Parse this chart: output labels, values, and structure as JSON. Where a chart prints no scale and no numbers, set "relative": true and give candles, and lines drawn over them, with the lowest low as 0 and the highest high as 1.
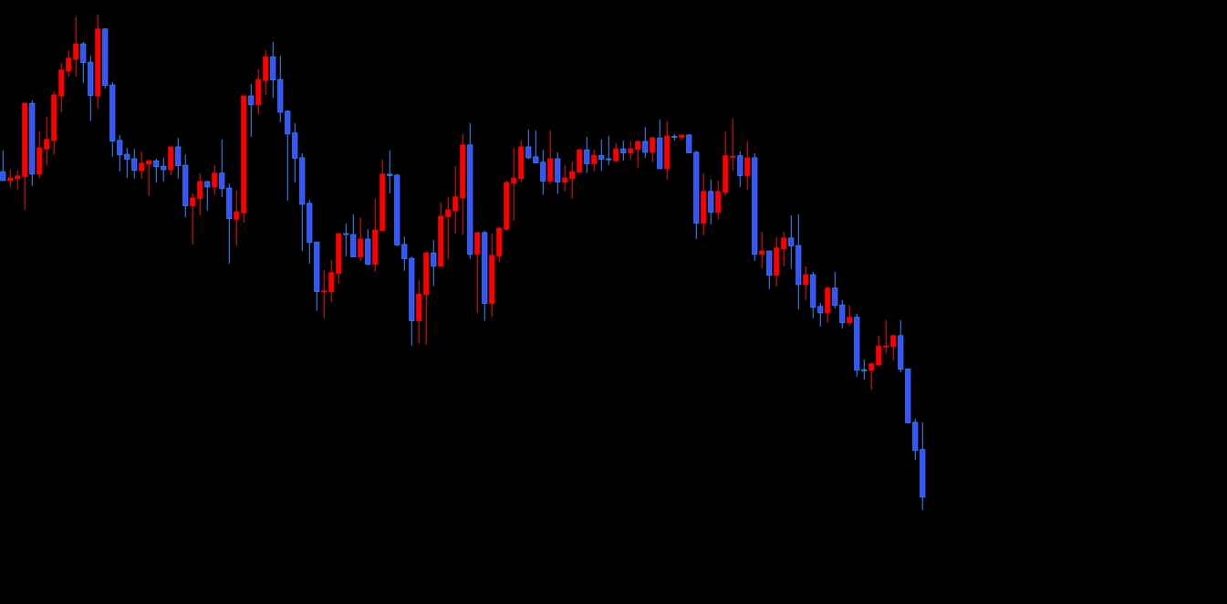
{
  "chart_data": {
    "type": "candlestick",
    "relative": true,
    "categories": [
      null,
      null,
      null,
      null,
      null,
      null,
      null,
      null,
      null,
      null,
      null,
      null,
      null,
      null,
      null,
      null,
      null,
      null,
      null,
      null,
      null,
      null,
      null,
      null,
      null,
      null,
      null,
      null,
      null,
      null,
      null,
      null,
      null,
      null,
      null,
      null,
      null,
      null,
      null,
      null,
      null,
      null,
      null,
      null,
      null,
      null,
      null,
      null,
      null,
      null,
      null,
      null,
      null,
      null,
      null,
      null,
      null,
      null,
      null,
      null,
      null,
      null,
      null,
      null,
      null,
      null,
      null,
      null,
      null,
      null,
      null,
      null,
      null,
      null,
      null,
      null,
      null,
      null,
      null,
      null,
      null,
      null,
      null,
      null,
      null,
      null,
      null,
      null,
      null,
      null,
      null,
      null,
      null,
      null,
      null,
      null,
      null,
      null,
      null,
      null,
      null,
      null,
      null,
      null,
      null,
      null,
      null,
      null,
      null,
      null,
      null,
      null,
      null,
      null,
      null,
      null,
      null,
      null,
      null,
      null,
      null,
      null,
      null,
      null,
      null,
      null,
      null
    ],
    "ohlc": [
      [
        0.683,
        0.726,
        0.665,
        0.665
      ],
      [
        0.665,
        0.687,
        0.652,
        0.67
      ],
      [
        0.669,
        0.685,
        0.647,
        0.674
      ],
      [
        0.673,
        0.821,
        0.606,
        0.821
      ],
      [
        0.821,
        0.827,
        0.654,
        0.678
      ],
      [
        0.678,
        0.764,
        0.67,
        0.731
      ],
      [
        0.729,
        0.794,
        0.696,
        0.748
      ],
      [
        0.746,
        0.845,
        0.718,
        0.838
      ],
      [
        0.836,
        0.902,
        0.803,
        0.888
      ],
      [
        0.886,
        0.928,
        0.875,
        0.912
      ],
      [
        0.91,
        0.996,
        0.875,
        0.941
      ],
      [
        0.941,
        0.945,
        0.862,
        0.903
      ],
      [
        0.904,
        0.917,
        0.785,
        0.837
      ],
      [
        0.836,
        1,
        0.81,
        0.971
      ],
      [
        0.971,
        0.971,
        0.851,
        0.857
      ],
      [
        0.858,
        0.864,
        0.713,
        0.745
      ],
      [
        0.746,
        0.757,
        0.683,
        0.717
      ],
      [
        0.718,
        0.731,
        0.67,
        0.708
      ],
      [
        0.709,
        0.729,
        0.669,
        0.686
      ],
      [
        0.685,
        0.724,
        0.669,
        0.7
      ],
      [
        0.698,
        0.707,
        0.634,
        0.705
      ],
      [
        0.705,
        0.709,
        0.661,
        0.693
      ],
      [
        0.694,
        0.711,
        0.663,
        0.687
      ],
      [
        0.687,
        0.733,
        0.676,
        0.733
      ],
      [
        0.733,
        0.751,
        0.669,
        0.695
      ],
      [
        0.696,
        0.718,
        0.591,
        0.614
      ],
      [
        0.614,
        0.639,
        0.536,
        0.63
      ],
      [
        0.629,
        0.68,
        0.595,
        0.663
      ],
      [
        0.663,
        0.665,
        0.604,
        0.652
      ],
      [
        0.652,
        0.696,
        0.637,
        0.68
      ],
      [
        0.68,
        0.748,
        0.632,
        0.649
      ],
      [
        0.65,
        0.659,
        0.497,
        0.588
      ],
      [
        0.587,
        0.645,
        0.534,
        0.602
      ],
      [
        0.6,
        0.836,
        0.58,
        0.836
      ],
      [
        0.836,
        0.86,
        0.753,
        0.818
      ],
      [
        0.818,
        0.89,
        0.799,
        0.869
      ],
      [
        0.867,
        0.928,
        0.838,
        0.915
      ],
      [
        0.915,
        0.945,
        0.832,
        0.868
      ],
      [
        0.869,
        0.917,
        0.783,
        0.803
      ],
      [
        0.805,
        0.807,
        0.624,
        0.759
      ],
      [
        0.761,
        0.781,
        0.661,
        0.71
      ],
      [
        0.711,
        0.72,
        0.523,
        0.617
      ],
      [
        0.619,
        0.626,
        0.497,
        0.54
      ],
      [
        0.541,
        0.541,
        0.402,
        0.441
      ],
      [
        0.442,
        0.484,
        0.387,
        0.442
      ],
      [
        0.441,
        0.505,
        0.42,
        0.479
      ],
      [
        0.478,
        0.558,
        0.457,
        0.558
      ],
      [
        0.558,
        0.578,
        0.512,
        0.556
      ],
      [
        0.556,
        0.597,
        0.511,
        0.511
      ],
      [
        0.511,
        0.591,
        0.503,
        0.547
      ],
      [
        0.547,
        0.567,
        0.494,
        0.496
      ],
      [
        0.496,
        0.628,
        0.481,
        0.565
      ],
      [
        0.564,
        0.707,
        0.564,
        0.678
      ],
      [
        0.678,
        0.726,
        0.639,
        0.675
      ],
      [
        0.676,
        0.678,
        0.533,
        0.535
      ],
      [
        0.536,
        0.552,
        0.483,
        0.507
      ],
      [
        0.508,
        0.512,
        0.332,
        0.382
      ],
      [
        0.382,
        0.464,
        0.336,
        0.436
      ],
      [
        0.435,
        0.521,
        0.334,
        0.519
      ],
      [
        0.519,
        0.545,
        0.452,
        0.492
      ],
      [
        0.492,
        0.621,
        0.492,
        0.593
      ],
      [
        0.592,
        0.632,
        0.507,
        0.606
      ],
      [
        0.604,
        0.694,
        0.558,
        0.632
      ],
      [
        0.63,
        0.759,
        0.556,
        0.737
      ],
      [
        0.737,
        0.781,
        0.507,
        0.516
      ],
      [
        0.516,
        0.56,
        0.398,
        0.56
      ],
      [
        0.56,
        0.564,
        0.382,
        0.417
      ],
      [
        0.417,
        0.558,
        0.39,
        0.514
      ],
      [
        0.513,
        0.571,
        0.501,
        0.569
      ],
      [
        0.567,
        0.665,
        0.563,
        0.661
      ],
      [
        0.66,
        0.731,
        0.584,
        0.67
      ],
      [
        0.669,
        0.746,
        0.662,
        0.733
      ],
      [
        0.733,
        0.768,
        0.708,
        0.711
      ],
      [
        0.713,
        0.766,
        0.701,
        0.701
      ],
      [
        0.702,
        0.727,
        0.636,
        0.664
      ],
      [
        0.664,
        0.766,
        0.658,
        0.709
      ],
      [
        0.709,
        0.722,
        0.638,
        0.662
      ],
      [
        0.662,
        0.696,
        0.643,
        0.67
      ],
      [
        0.669,
        0.703,
        0.629,
        0.683
      ],
      [
        0.682,
        0.729,
        0.682,
        0.727
      ],
      [
        0.727,
        0.753,
        0.68,
        0.699
      ],
      [
        0.699,
        0.727,
        0.684,
        0.716
      ],
      [
        0.716,
        0.748,
        0.684,
        0.708
      ],
      [
        0.709,
        0.755,
        0.696,
        0.707
      ],
      [
        0.705,
        0.74,
        0.702,
        0.729
      ],
      [
        0.729,
        0.746,
        0.705,
        0.721
      ],
      [
        0.721,
        0.744,
        0.707,
        0.729
      ],
      [
        0.728,
        0.744,
        0.691,
        0.744
      ],
      [
        0.744,
        0.773,
        0.711,
        0.722
      ],
      [
        0.722,
        0.753,
        0.702,
        0.751
      ],
      [
        0.751,
        0.788,
        0.689,
        0.689
      ],
      [
        0.689,
        0.785,
        0.667,
        0.755
      ],
      [
        0.754,
        0.759,
        0.746,
        0.753
      ],
      [
        0.752,
        0.757,
        0.748,
        0.757
      ],
      [
        0.757,
        0.759,
        0.721,
        0.721
      ],
      [
        0.722,
        0.726,
        0.547,
        0.579
      ],
      [
        0.579,
        0.68,
        0.554,
        0.643
      ],
      [
        0.643,
        0.667,
        0.576,
        0.601
      ],
      [
        0.601,
        0.665,
        0.586,
        0.643
      ],
      [
        0.641,
        0.764,
        0.634,
        0.715
      ],
      [
        0.714,
        0.79,
        0.685,
        0.714
      ],
      [
        0.715,
        0.724,
        0.652,
        0.675
      ],
      [
        0.675,
        0.744,
        0.646,
        0.711
      ],
      [
        0.711,
        0.72,
        0.503,
        0.516
      ],
      [
        0.516,
        0.562,
        0.488,
        0.523
      ],
      [
        0.523,
        0.523,
        0.446,
        0.474
      ],
      [
        0.474,
        0.551,
        0.451,
        0.529
      ],
      [
        0.527,
        0.562,
        0.492,
        0.549
      ],
      [
        0.549,
        0.595,
        0.486,
        0.533
      ],
      [
        0.534,
        0.597,
        0.405,
        0.455
      ],
      [
        0.455,
        0.492,
        0.424,
        0.475
      ],
      [
        0.475,
        0.481,
        0.387,
        0.409
      ],
      [
        0.411,
        0.418,
        0.37,
        0.398
      ],
      [
        0.398,
        0.451,
        0.378,
        0.448
      ],
      [
        0.448,
        0.481,
        0.407,
        0.413
      ],
      [
        0.414,
        0.424,
        0.366,
        0.378
      ],
      [
        0.378,
        0.413,
        0.372,
        0.389
      ],
      [
        0.389,
        0.396,
        0.269,
        0.282
      ],
      [
        0.283,
        0.304,
        0.263,
        0.282
      ],
      [
        0.282,
        0.298,
        0.243,
        0.295
      ],
      [
        0.293,
        0.352,
        0.289,
        0.331
      ],
      [
        0.331,
        0.383,
        0.317,
        0.331
      ],
      [
        0.33,
        0.352,
        0.302,
        0.352
      ],
      [
        0.352,
        0.383,
        0.278,
        0.284
      ],
      [
        0.285,
        0.285,
        0.176,
        0.176
      ],
      [
        0.177,
        0.184,
        0.101,
        0.12
      ],
      [
        0.122,
        0.177,
        0,
        0.026
      ]
    ]
  }
}
